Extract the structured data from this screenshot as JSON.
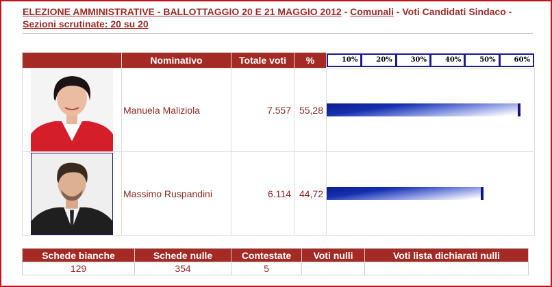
{
  "header": {
    "title_link": "ELEZIONE AMMINISTRATIVE - BALLOTTAGGIO 20 E 21 MAGGIO 2012",
    "sep1": " - ",
    "category_link": "Comunali",
    "subtitle": " - Voti Candidati Sindaco - ",
    "sections_link": "Sezioni scrutinate: 20 su 20"
  },
  "table": {
    "columns": {
      "name": "Nominativo",
      "votes": "Totale voti",
      "pct": "%"
    },
    "scale": [
      "10%",
      "20%",
      "30%",
      "40%",
      "50%",
      "60%"
    ],
    "scale_max": 60,
    "candidates": [
      {
        "name": "Manuela Maliziola",
        "votes": "7.557",
        "pct_label": "55,28",
        "pct": 55.28,
        "photo": "candidate-photo-female"
      },
      {
        "name": "Massimo Ruspandini",
        "votes": "6.114",
        "pct_label": "44,72",
        "pct": 44.72,
        "photo": "candidate-photo-male"
      }
    ]
  },
  "stats": {
    "headers": [
      "Schede bianche",
      "Schede nulle",
      "Contestate",
      "Voti nulli",
      "Voti lista dichiarati nulli"
    ],
    "values": [
      "129",
      "354",
      "5",
      "",
      ""
    ]
  },
  "colors": {
    "accent": "#a52a24",
    "text": "#8b2a22",
    "bar": "#1530b0",
    "frame": "#c0141a"
  }
}
